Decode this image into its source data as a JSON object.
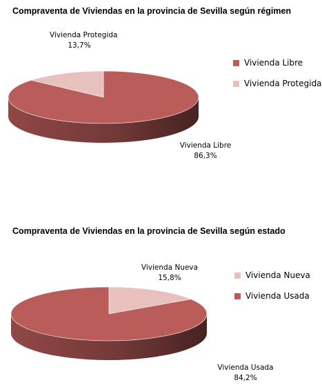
{
  "chart_data": [
    {
      "type": "pie",
      "title": "Compraventa de Viviendas en la provincia de Sevilla según régimen",
      "categories": [
        "Vivienda Libre",
        "Vivienda Protegida"
      ],
      "values": [
        86.3,
        13.7
      ],
      "value_labels": [
        "86,3%",
        "13,7%"
      ],
      "colors": [
        "#b95c5a",
        "#e8c0bd"
      ],
      "legend": [
        "Vivienda Libre",
        "Vivienda Protegida"
      ],
      "legend_position": "right"
    },
    {
      "type": "pie",
      "title": "Compraventa de Viviendas en la provincia de Sevilla según estado",
      "categories": [
        "Vivienda Nueva",
        "Vivienda Usada"
      ],
      "values": [
        15.8,
        84.2
      ],
      "value_labels": [
        "15,8%",
        "84,2%"
      ],
      "colors": [
        "#e8c0bd",
        "#b95c5a"
      ],
      "legend": [
        "Vivienda Nueva",
        "Vivienda Usada"
      ],
      "legend_position": "right"
    }
  ]
}
